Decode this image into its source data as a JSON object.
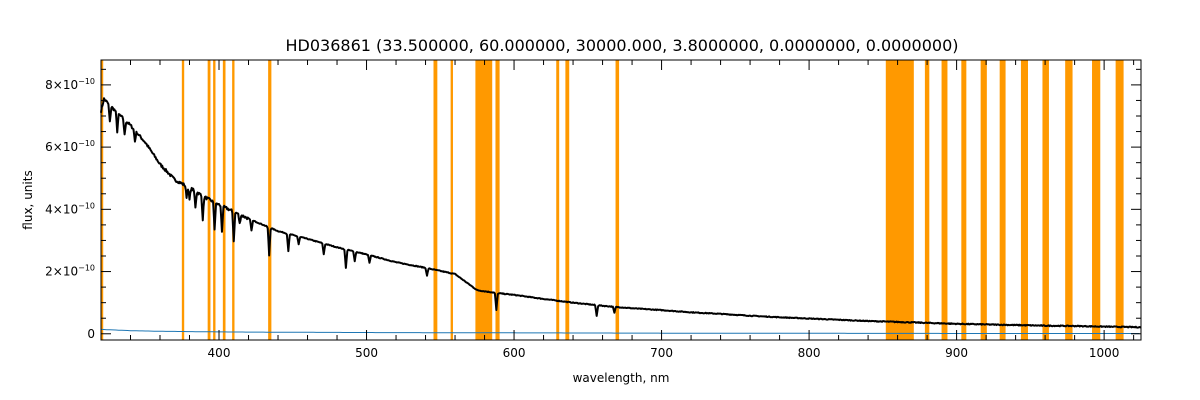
{
  "chart_data": {
    "type": "line",
    "title": "HD036861    (33.500000, 60.000000, 30000.000, 3.8000000, 0.0000000, 0.0000000)",
    "xlabel": "wavelength, nm",
    "ylabel": "flux, units",
    "xlim": [
      320,
      1025
    ],
    "ylim": [
      -2e-11,
      8.8e-10
    ],
    "x_ticks": [
      400,
      500,
      600,
      700,
      800,
      900,
      1000
    ],
    "x_tick_labels": [
      "400",
      "500",
      "600",
      "700",
      "800",
      "900",
      "1000"
    ],
    "y_ticks": [
      0,
      2e-10,
      4e-10,
      6e-10,
      8e-10
    ],
    "y_tick_labels": [
      {
        "mantissa": "0",
        "exponent": ""
      },
      {
        "mantissa": "2×10",
        "exponent": "−10"
      },
      {
        "mantissa": "4×10",
        "exponent": "−10"
      },
      {
        "mantissa": "6×10",
        "exponent": "−10"
      },
      {
        "mantissa": "8×10",
        "exponent": "−10"
      }
    ],
    "grid": false,
    "colors": {
      "flux": "#000000",
      "error": "#1f77b4",
      "mask": "#ff9900"
    },
    "mask_bands": [
      [
        320.0,
        321.5
      ],
      [
        374.8,
        376.4
      ],
      [
        392.3,
        394.2
      ],
      [
        396.0,
        397.6
      ],
      [
        402.6,
        404.4
      ],
      [
        408.9,
        410.5
      ],
      [
        433.3,
        435.5
      ],
      [
        545.4,
        548.0
      ],
      [
        557.0,
        558.6
      ],
      [
        573.8,
        585.2
      ],
      [
        587.4,
        590.2
      ],
      [
        628.6,
        630.6
      ],
      [
        634.8,
        637.4
      ],
      [
        668.8,
        671.2
      ],
      [
        852.0,
        871.0
      ],
      [
        878.5,
        881.5
      ],
      [
        889.8,
        893.8
      ],
      [
        903.2,
        906.6
      ],
      [
        916.3,
        920.5
      ],
      [
        929.2,
        933.2
      ],
      [
        943.6,
        948.4
      ],
      [
        958.2,
        962.6
      ],
      [
        973.6,
        978.6
      ],
      [
        991.8,
        997.4
      ],
      [
        1007.8,
        1013.2
      ]
    ],
    "series": [
      {
        "x": [
          320,
          322,
          325,
          330,
          340,
          350,
          360,
          370,
          380,
          390,
          400,
          420,
          440,
          460,
          480,
          500,
          520,
          540,
          560,
          575,
          590,
          600,
          620,
          640,
          660,
          680,
          700,
          720,
          740,
          760,
          780,
          800,
          820,
          840,
          860,
          880,
          900,
          920,
          940,
          960,
          980,
          1000,
          1025
        ],
        "y": [
          7.15e-10,
          7.55e-10,
          7.4e-10,
          7.15e-10,
          6.7e-10,
          6.15e-10,
          5.45e-10,
          4.95e-10,
          4.7e-10,
          4.4e-10,
          4.15e-10,
          3.7e-10,
          3.3e-10,
          3.05e-10,
          2.78e-10,
          2.55e-10,
          2.3e-10,
          2.12e-10,
          1.92e-10,
          1.4e-10,
          1.3e-10,
          1.25e-10,
          1.12e-10,
          1e-10,
          9e-11,
          8.2e-11,
          7.6e-11,
          6.9e-11,
          6.4e-11,
          5.8e-11,
          5.3e-11,
          4.9e-11,
          4.5e-11,
          4.1e-11,
          3.8e-11,
          3.5e-11,
          3.2e-11,
          3e-11,
          2.8e-11,
          2.6e-11,
          2.5e-11,
          2.3e-11,
          2.1e-11
        ]
      },
      {
        "x": [
          320,
          330,
          340,
          350,
          360,
          380,
          400,
          440,
          500,
          600,
          700,
          800,
          900,
          1025
        ],
        "y": [
          1.4e-11,
          1.2e-11,
          1e-11,
          9e-12,
          8e-12,
          7e-12,
          6e-12,
          5e-12,
          4e-12,
          3e-12,
          2e-12,
          1.5e-12,
          1e-12,
          8e-13
        ]
      }
    ],
    "absorption_lines": [
      {
        "x": 326,
        "depth": 5.5e-11
      },
      {
        "x": 331,
        "depth": 6e-11
      },
      {
        "x": 336,
        "depth": 5e-11
      },
      {
        "x": 343,
        "depth": 3.5e-11
      },
      {
        "x": 378,
        "depth": 3.5e-11
      },
      {
        "x": 380,
        "depth": 4e-11
      },
      {
        "x": 384,
        "depth": 5e-11
      },
      {
        "x": 389,
        "depth": 7.5e-11
      },
      {
        "x": 397,
        "depth": 8.5e-11
      },
      {
        "x": 402,
        "depth": 8e-11
      },
      {
        "x": 410,
        "depth": 9.5e-11
      },
      {
        "x": 414,
        "depth": 3e-11
      },
      {
        "x": 422,
        "depth": 3.5e-11
      },
      {
        "x": 434,
        "depth": 9e-11
      },
      {
        "x": 447,
        "depth": 5.5e-11
      },
      {
        "x": 454,
        "depth": 2.5e-11
      },
      {
        "x": 471,
        "depth": 3.5e-11
      },
      {
        "x": 486,
        "depth": 6e-11
      },
      {
        "x": 492,
        "depth": 3e-11
      },
      {
        "x": 502,
        "depth": 2.5e-11
      },
      {
        "x": 541,
        "depth": 2.5e-11
      },
      {
        "x": 588,
        "depth": 5.5e-11
      },
      {
        "x": 656,
        "depth": 3.5e-11
      },
      {
        "x": 668,
        "depth": 2e-11
      }
    ]
  }
}
